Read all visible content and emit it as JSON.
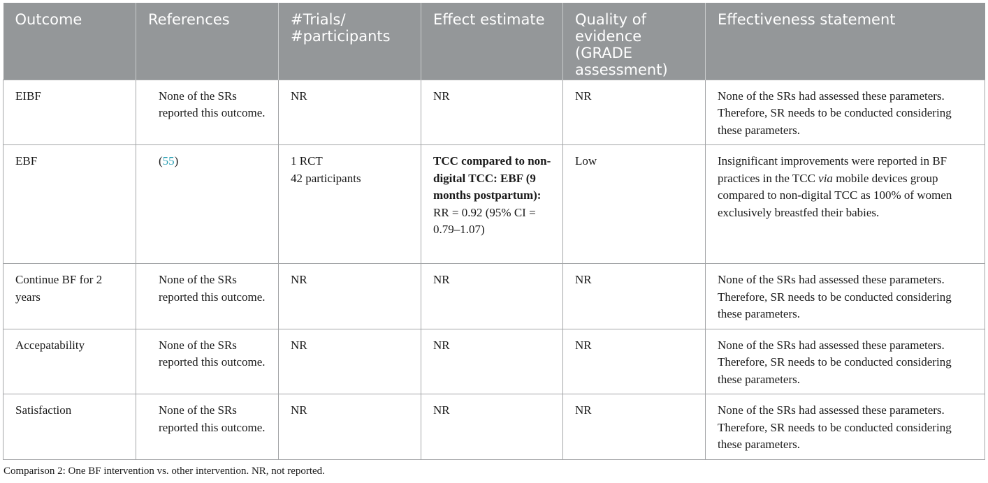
{
  "table": {
    "headers": [
      "Outcome",
      "References",
      "#Trials/ #participants",
      "Effect estimate",
      "Quality of evidence (GRADE assessment)",
      "Effectiveness statement"
    ],
    "rows": [
      {
        "outcome": "EIBF",
        "references": "None of the SRs reported this outcome.",
        "trials": "NR",
        "effect": "NR",
        "quality": "NR",
        "statement": "None of the SRs had assessed these parameters. Therefore, SR needs to be conducted considering these parameters."
      },
      {
        "outcome": "EBF",
        "ref_open": "(",
        "ref_num": "55",
        "ref_close": ")",
        "trials_1": "1 RCT",
        "trials_2": "42 participants",
        "effect_bold": "TCC compared to non-digital TCC: EBF (9 months postpartum):",
        "effect_rest": " RR = 0.92 (95% CI = 0.79–1.07)",
        "quality": "Low",
        "statement_a": "Insignificant improvements were reported in BF practices in the TCC ",
        "statement_via": "via",
        "statement_b": " mobile devices group compared to non-digital TCC as 100% of women exclusively breastfed their babies."
      },
      {
        "outcome": "Continue BF for 2 years",
        "references": "None of the SRs reported this outcome.",
        "trials": "NR",
        "effect": "NR",
        "quality": "NR",
        "statement": "None of the SRs had assessed these parameters. Therefore, SR needs to be conducted considering these parameters."
      },
      {
        "outcome": "Accepatability",
        "references": "None of the SRs reported this outcome.",
        "trials": "NR",
        "effect": "NR",
        "quality": "NR",
        "statement": "None of the SRs had assessed these parameters. Therefore, SR needs to be conducted considering these parameters."
      },
      {
        "outcome": "Satisfaction",
        "references": "None of the SRs reported this outcome.",
        "trials": "NR",
        "effect": "NR",
        "quality": "NR",
        "statement": "None of the SRs had assessed these parameters. Therefore, SR needs to be conducted considering these parameters."
      }
    ]
  },
  "caption": "Comparison 2: One BF intervention vs. other intervention. NR, not reported."
}
